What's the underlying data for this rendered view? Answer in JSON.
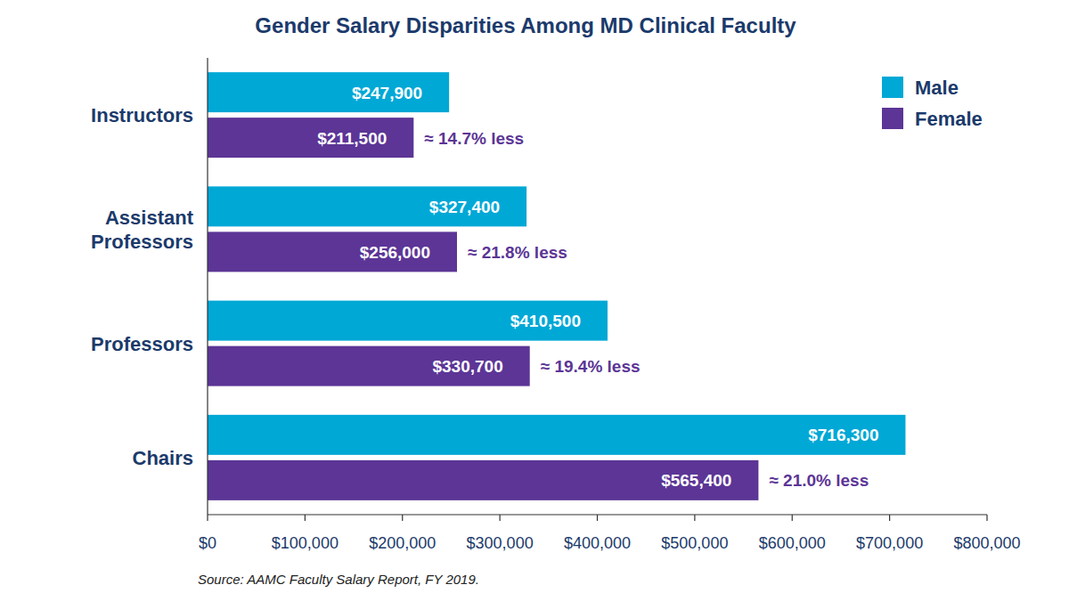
{
  "chart_data": {
    "type": "bar",
    "orientation": "horizontal",
    "title": "Gender Salary Disparities Among MD Clinical Faculty",
    "categories": [
      "Instructors",
      "Assistant Professors",
      "Professors",
      "Chairs"
    ],
    "series": [
      {
        "name": "Male",
        "color": "#00a8d6",
        "values": [
          247900,
          327400,
          410500,
          716300
        ],
        "value_labels": [
          "$247,900",
          "$327,400",
          "$410,500",
          "$716,300"
        ]
      },
      {
        "name": "Female",
        "color": "#5c3596",
        "values": [
          211500,
          256000,
          330700,
          565400
        ],
        "value_labels": [
          "$211,500",
          "$256,000",
          "$330,700",
          "$565,400"
        ]
      }
    ],
    "annotations": [
      "≈ 14.7% less",
      "≈ 21.8% less",
      "≈ 19.4% less",
      "≈ 21.0% less"
    ],
    "xlim": [
      0,
      800000
    ],
    "xticks": [
      {
        "value": 0,
        "label": "$0"
      },
      {
        "value": 100000,
        "label": "$100,000"
      },
      {
        "value": 200000,
        "label": "$200,000"
      },
      {
        "value": 300000,
        "label": "$300,000"
      },
      {
        "value": 400000,
        "label": "$400,000"
      },
      {
        "value": 500000,
        "label": "$500,000"
      },
      {
        "value": 600000,
        "label": "$600,000"
      },
      {
        "value": 700000,
        "label": "$700,000"
      },
      {
        "value": 800000,
        "label": "$800,000"
      }
    ],
    "data_labels": true,
    "legend": "top-right",
    "grid": false,
    "source": "Source: AAMC Faculty Salary Report, FY 2019."
  }
}
